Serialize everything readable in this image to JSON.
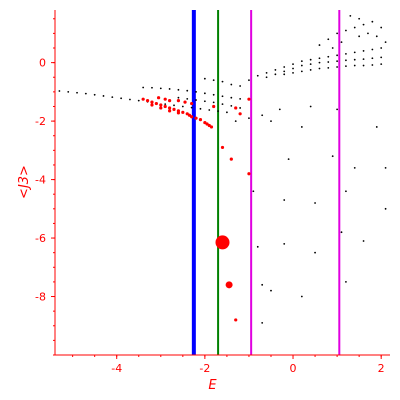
{
  "chart_data": {
    "type": "scatter",
    "title": "",
    "xlabel": "E",
    "ylabel": "<J3>",
    "xlim": [
      -5.4,
      2.2
    ],
    "ylim": [
      -10.0,
      1.8
    ],
    "x_ticks": [
      -4,
      -2,
      0,
      2
    ],
    "y_ticks": [
      0,
      -2,
      -4,
      -6,
      -8
    ],
    "x_tick_labels": [
      "-4",
      "-2",
      "0",
      "2"
    ],
    "y_tick_labels": [
      "0",
      "-2",
      "-4",
      "-6",
      "-8"
    ],
    "grid": false,
    "axis_color": "#ff0000",
    "vertical_lines": [
      {
        "x": -2.25,
        "color": "#0000ff"
      },
      {
        "x": -1.7,
        "color": "#008000"
      },
      {
        "x": -0.95,
        "color": "#e000e0"
      },
      {
        "x": 1.05,
        "color": "#e000e0"
      }
    ],
    "series": [
      {
        "color": "#000000",
        "marker": "dot",
        "points": [
          [
            -5.3,
            -0.97
          ],
          [
            -5.1,
            -1.0
          ],
          [
            -4.9,
            -1.03
          ],
          [
            -4.7,
            -1.06
          ],
          [
            -4.5,
            -1.1
          ],
          [
            -4.3,
            -1.14
          ],
          [
            -4.1,
            -1.18
          ],
          [
            -3.9,
            -1.22
          ],
          [
            -3.7,
            -1.26
          ],
          [
            -3.5,
            -1.3
          ],
          [
            -3.3,
            -1.34
          ],
          [
            -3.1,
            -1.38
          ],
          [
            -2.9,
            -1.42
          ],
          [
            -2.7,
            -1.46
          ],
          [
            -2.5,
            -1.5
          ],
          [
            -2.3,
            -1.54
          ],
          [
            -2.1,
            -1.58
          ],
          [
            -1.9,
            -1.62
          ],
          [
            -1.7,
            -1.66
          ],
          [
            -1.5,
            -1.7
          ],
          [
            -3.4,
            -0.85
          ],
          [
            -3.2,
            -0.86
          ],
          [
            -3.0,
            -0.88
          ],
          [
            -2.8,
            -0.9
          ],
          [
            -2.6,
            -0.93
          ],
          [
            -2.4,
            -0.96
          ],
          [
            -2.2,
            -1.0
          ],
          [
            -2.0,
            -1.05
          ],
          [
            -1.8,
            -1.1
          ],
          [
            -1.6,
            -1.15
          ],
          [
            -1.4,
            -1.2
          ],
          [
            -1.2,
            -1.24
          ],
          [
            -2.6,
            -1.2
          ],
          [
            -2.4,
            -1.24
          ],
          [
            -2.2,
            -1.28
          ],
          [
            -2.0,
            -1.32
          ],
          [
            -1.8,
            -1.36
          ],
          [
            -1.6,
            -1.42
          ],
          [
            -1.4,
            -1.48
          ],
          [
            -1.2,
            -1.55
          ],
          [
            -2.0,
            -0.55
          ],
          [
            -1.8,
            -0.6
          ],
          [
            -1.6,
            -0.65
          ],
          [
            -1.4,
            -0.75
          ],
          [
            -1.2,
            -0.8
          ],
          [
            -1.0,
            -0.6
          ],
          [
            -0.8,
            -0.45
          ],
          [
            -0.6,
            -0.35
          ],
          [
            -0.4,
            -0.25
          ],
          [
            -0.2,
            -0.15
          ],
          [
            0.0,
            -0.05
          ],
          [
            0.2,
            0.05
          ],
          [
            0.4,
            0.1
          ],
          [
            0.6,
            0.15
          ],
          [
            0.8,
            0.2
          ],
          [
            1.0,
            0.25
          ],
          [
            1.2,
            0.3
          ],
          [
            1.4,
            0.35
          ],
          [
            1.6,
            0.4
          ],
          [
            1.8,
            0.45
          ],
          [
            2.0,
            0.5
          ],
          [
            -0.6,
            -0.5
          ],
          [
            -0.4,
            -0.4
          ],
          [
            -0.2,
            -0.3
          ],
          [
            0.0,
            -0.2
          ],
          [
            0.2,
            -0.1
          ],
          [
            0.4,
            -0.05
          ],
          [
            0.6,
            0.0
          ],
          [
            0.8,
            0.02
          ],
          [
            1.0,
            0.05
          ],
          [
            1.2,
            0.08
          ],
          [
            1.4,
            0.1
          ],
          [
            1.6,
            0.12
          ],
          [
            1.8,
            0.15
          ],
          [
            2.0,
            0.18
          ],
          [
            -0.2,
            -0.4
          ],
          [
            0.0,
            -0.35
          ],
          [
            0.2,
            -0.3
          ],
          [
            0.4,
            -0.25
          ],
          [
            0.6,
            -0.2
          ],
          [
            0.8,
            -0.18
          ],
          [
            1.0,
            -0.15
          ],
          [
            1.2,
            -0.12
          ],
          [
            1.4,
            -0.1
          ],
          [
            1.6,
            -0.1
          ],
          [
            1.8,
            -0.08
          ],
          [
            2.0,
            -0.05
          ],
          [
            0.6,
            0.6
          ],
          [
            0.8,
            0.8
          ],
          [
            1.0,
            1.0
          ],
          [
            1.2,
            1.1
          ],
          [
            1.4,
            1.2
          ],
          [
            1.6,
            1.3
          ],
          [
            1.8,
            1.4
          ],
          [
            2.0,
            1.2
          ],
          [
            1.3,
            1.6
          ],
          [
            1.5,
            1.5
          ],
          [
            1.7,
            1.0
          ],
          [
            1.9,
            0.9
          ],
          [
            0.9,
            0.5
          ],
          [
            1.1,
            0.7
          ],
          [
            1.5,
            0.9
          ],
          [
            2.1,
            0.7
          ],
          [
            -1.3,
            -2.0
          ],
          [
            -1.0,
            -1.9
          ],
          [
            -0.7,
            -1.8
          ],
          [
            -0.3,
            -1.6
          ],
          [
            0.4,
            -1.5
          ],
          [
            -0.5,
            -2.0
          ],
          [
            0.2,
            -2.2
          ],
          [
            1.0,
            -1.6
          ],
          [
            1.9,
            -2.2
          ],
          [
            -0.1,
            -3.3
          ],
          [
            0.9,
            -3.2
          ],
          [
            1.4,
            -3.6
          ],
          [
            2.1,
            -3.6
          ],
          [
            -0.9,
            -4.4
          ],
          [
            -0.2,
            -4.7
          ],
          [
            0.5,
            -4.8
          ],
          [
            1.2,
            -4.4
          ],
          [
            2.1,
            -5.0
          ],
          [
            -0.8,
            -6.3
          ],
          [
            -0.2,
            -6.2
          ],
          [
            0.5,
            -6.5
          ],
          [
            1.1,
            -5.8
          ],
          [
            1.6,
            -6.1
          ],
          [
            -0.7,
            -7.6
          ],
          [
            -0.5,
            -7.8
          ],
          [
            0.2,
            -8.0
          ],
          [
            1.2,
            -7.5
          ],
          [
            -0.7,
            -8.9
          ]
        ]
      },
      {
        "color": "#ff0000",
        "marker": "dot",
        "points": [
          [
            -3.4,
            -1.25
          ],
          [
            -3.3,
            -1.3
          ],
          [
            -3.2,
            -1.35
          ],
          [
            -3.1,
            -1.4
          ],
          [
            -3.0,
            -1.45
          ],
          [
            -2.9,
            -1.5
          ],
          [
            -2.8,
            -1.55
          ],
          [
            -2.7,
            -1.6
          ],
          [
            -2.6,
            -1.65
          ],
          [
            -2.5,
            -1.7
          ],
          [
            -2.4,
            -1.75
          ],
          [
            -2.35,
            -1.8
          ],
          [
            -2.3,
            -1.85
          ],
          [
            -2.2,
            -1.9
          ],
          [
            -2.1,
            -1.95
          ],
          [
            -2.0,
            -2.05
          ],
          [
            -1.95,
            -2.1
          ],
          [
            -1.9,
            -2.15
          ],
          [
            -1.85,
            -2.2
          ],
          [
            -3.05,
            -1.2
          ],
          [
            -2.9,
            -1.25
          ],
          [
            -2.8,
            -1.3
          ],
          [
            -2.6,
            -1.3
          ],
          [
            -2.45,
            -1.35
          ],
          [
            -2.3,
            -1.4
          ],
          [
            -3.2,
            -1.45
          ],
          [
            -3.0,
            -1.55
          ],
          [
            -2.8,
            -1.65
          ],
          [
            -2.6,
            -1.72
          ],
          [
            -1.8,
            -1.5
          ],
          [
            -1.3,
            -1.55
          ],
          [
            -1.2,
            -1.75
          ],
          [
            -1.0,
            -1.25
          ],
          [
            -1.4,
            -3.3
          ],
          [
            -1.6,
            -2.9
          ],
          [
            -1.0,
            -3.8
          ],
          [
            -1.3,
            -8.8
          ]
        ]
      },
      {
        "color": "#ff0000",
        "marker": "dot",
        "size": "large",
        "points": [
          [
            -1.6,
            -6.15
          ]
        ]
      },
      {
        "color": "#ff0000",
        "marker": "dot",
        "size": "medium",
        "points": [
          [
            -1.45,
            -7.6
          ]
        ]
      }
    ]
  }
}
